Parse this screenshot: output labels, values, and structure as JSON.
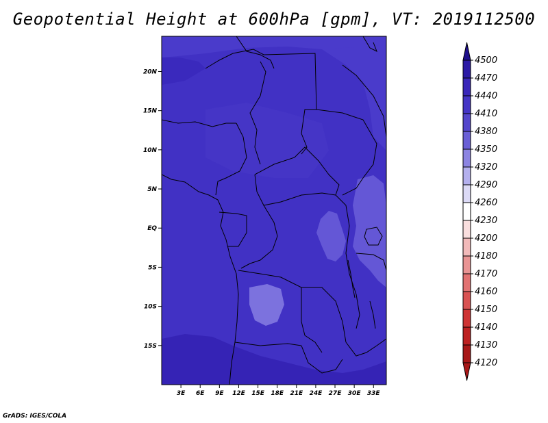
{
  "title": "Geopotential Height at 600hPa [gpm], VT: 2019112500",
  "credit": "GrADS: IGES/COLA",
  "map": {
    "lon_range": [
      0,
      35
    ],
    "lat_range": [
      -20,
      24.5
    ],
    "lat_ticks": [
      {
        "value": 20,
        "label": "20N"
      },
      {
        "value": 15,
        "label": "15N"
      },
      {
        "value": 10,
        "label": "10N"
      },
      {
        "value": 5,
        "label": "5N"
      },
      {
        "value": 0,
        "label": "EQ"
      },
      {
        "value": -5,
        "label": "5S"
      },
      {
        "value": -10,
        "label": "10S"
      },
      {
        "value": -15,
        "label": "15S"
      }
    ],
    "lon_ticks": [
      {
        "value": 3,
        "label": "3E"
      },
      {
        "value": 6,
        "label": "6E"
      },
      {
        "value": 9,
        "label": "9E"
      },
      {
        "value": 12,
        "label": "12E"
      },
      {
        "value": 15,
        "label": "15E"
      },
      {
        "value": 18,
        "label": "18E"
      },
      {
        "value": 21,
        "label": "21E"
      },
      {
        "value": 24,
        "label": "24E"
      },
      {
        "value": 27,
        "label": "27E"
      },
      {
        "value": 30,
        "label": "30E"
      },
      {
        "value": 33,
        "label": "33E"
      }
    ],
    "background_fill": "#4131c4"
  },
  "colorbar": {
    "levels": [
      "4500",
      "4470",
      "4440",
      "4410",
      "4380",
      "4350",
      "4320",
      "4290",
      "4260",
      "4230",
      "4200",
      "4180",
      "4170",
      "4160",
      "4150",
      "4140",
      "4130",
      "4120"
    ],
    "colors": [
      "#1e0f8c",
      "#2c1aa6",
      "#3a27ba",
      "#4535c6",
      "#5446cc",
      "#6a5fd6",
      "#8c84e2",
      "#b4b0ee",
      "#dcdaf6",
      "#ffffff",
      "#f9dede",
      "#f2baba",
      "#e99494",
      "#e27272",
      "#d95252",
      "#cf3434",
      "#bd2121",
      "#a81818"
    ]
  }
}
